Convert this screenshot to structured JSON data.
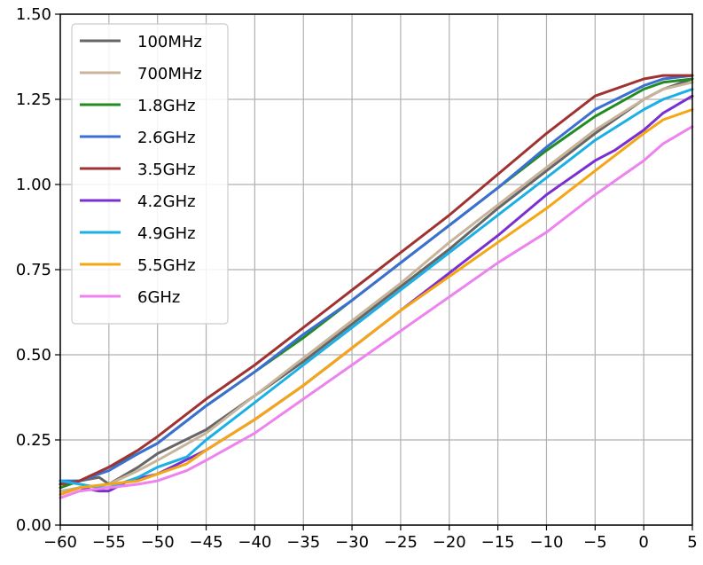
{
  "chart_data": {
    "type": "line",
    "title": "",
    "xlabel": "",
    "ylabel": "",
    "xlim": [
      -60,
      5
    ],
    "ylim": [
      0,
      1.5
    ],
    "xticks": [
      -60,
      -55,
      -50,
      -45,
      -40,
      -35,
      -30,
      -25,
      -20,
      -15,
      -10,
      -5,
      0,
      5
    ],
    "yticks": [
      "0.00",
      "0.25",
      "0.50",
      "0.75",
      "1.00",
      "1.25",
      "1.50"
    ],
    "grid": true,
    "legend_position": "top-left",
    "series": [
      {
        "name": "100MHz",
        "color": "#666666",
        "x": [
          -60,
          -58,
          -56,
          -55,
          -52,
          -50,
          -45,
          -40,
          -35,
          -30,
          -25,
          -20,
          -15,
          -10,
          -5,
          0,
          2,
          5
        ],
        "y": [
          0.12,
          0.13,
          0.14,
          0.12,
          0.17,
          0.21,
          0.28,
          0.38,
          0.48,
          0.59,
          0.7,
          0.81,
          0.93,
          1.04,
          1.15,
          1.25,
          1.28,
          1.31
        ]
      },
      {
        "name": "700MHz",
        "color": "#c8b49b",
        "x": [
          -60,
          -58,
          -55,
          -52,
          -50,
          -45,
          -40,
          -35,
          -30,
          -25,
          -20,
          -15,
          -10,
          -5,
          0,
          2,
          5
        ],
        "y": [
          0.1,
          0.11,
          0.12,
          0.16,
          0.19,
          0.27,
          0.38,
          0.49,
          0.6,
          0.71,
          0.83,
          0.94,
          1.05,
          1.16,
          1.25,
          1.28,
          1.3
        ]
      },
      {
        "name": "1.8GHz",
        "color": "#228b22",
        "x": [
          -60,
          -58,
          -55,
          -52,
          -50,
          -45,
          -40,
          -35,
          -30,
          -25,
          -20,
          -15,
          -10,
          -5,
          0,
          2,
          5
        ],
        "y": [
          0.11,
          0.13,
          0.17,
          0.21,
          0.24,
          0.35,
          0.45,
          0.55,
          0.66,
          0.77,
          0.88,
          0.99,
          1.1,
          1.2,
          1.28,
          1.3,
          1.31
        ]
      },
      {
        "name": "2.6GHz",
        "color": "#3b6fd4",
        "x": [
          -60,
          -58,
          -55,
          -52,
          -50,
          -45,
          -40,
          -35,
          -30,
          -25,
          -20,
          -15,
          -10,
          -5,
          0,
          2,
          5
        ],
        "y": [
          0.13,
          0.13,
          0.16,
          0.21,
          0.24,
          0.35,
          0.45,
          0.56,
          0.66,
          0.77,
          0.88,
          0.99,
          1.11,
          1.22,
          1.29,
          1.31,
          1.32
        ]
      },
      {
        "name": "3.5GHz",
        "color": "#a03232",
        "x": [
          -60,
          -58,
          -55,
          -52,
          -50,
          -45,
          -40,
          -35,
          -30,
          -25,
          -20,
          -15,
          -10,
          -5,
          0,
          2,
          5
        ],
        "y": [
          0.12,
          0.13,
          0.17,
          0.22,
          0.26,
          0.37,
          0.47,
          0.58,
          0.69,
          0.8,
          0.91,
          1.03,
          1.15,
          1.26,
          1.31,
          1.32,
          1.32
        ]
      },
      {
        "name": "4.2GHz",
        "color": "#7b2fd1",
        "x": [
          -60,
          -58,
          -56,
          -55,
          -53,
          -50,
          -45,
          -40,
          -35,
          -30,
          -25,
          -20,
          -15,
          -10,
          -5,
          -3,
          0,
          2,
          5
        ],
        "y": [
          0.09,
          0.11,
          0.1,
          0.1,
          0.13,
          0.15,
          0.22,
          0.31,
          0.41,
          0.52,
          0.63,
          0.74,
          0.85,
          0.97,
          1.07,
          1.1,
          1.16,
          1.21,
          1.26
        ]
      },
      {
        "name": "4.9GHz",
        "color": "#1ab0e6",
        "x": [
          -60,
          -58,
          -56,
          -55,
          -52,
          -50,
          -47,
          -45,
          -40,
          -35,
          -30,
          -25,
          -20,
          -15,
          -10,
          -5,
          0,
          2,
          5
        ],
        "y": [
          0.13,
          0.12,
          0.11,
          0.11,
          0.14,
          0.17,
          0.2,
          0.25,
          0.36,
          0.47,
          0.58,
          0.69,
          0.8,
          0.91,
          1.02,
          1.13,
          1.22,
          1.25,
          1.28
        ]
      },
      {
        "name": "5.5GHz",
        "color": "#f5a614",
        "x": [
          -60,
          -58,
          -55,
          -52,
          -50,
          -47,
          -45,
          -40,
          -35,
          -30,
          -25,
          -20,
          -15,
          -10,
          -5,
          0,
          2,
          5
        ],
        "y": [
          0.09,
          0.11,
          0.12,
          0.13,
          0.15,
          0.18,
          0.22,
          0.31,
          0.41,
          0.52,
          0.63,
          0.73,
          0.83,
          0.93,
          1.04,
          1.15,
          1.19,
          1.22
        ]
      },
      {
        "name": "6GHz",
        "color": "#ee82ee",
        "x": [
          -60,
          -58,
          -55,
          -52,
          -50,
          -47,
          -45,
          -40,
          -35,
          -30,
          -25,
          -20,
          -15,
          -10,
          -5,
          0,
          2,
          5
        ],
        "y": [
          0.08,
          0.1,
          0.11,
          0.12,
          0.13,
          0.16,
          0.19,
          0.27,
          0.37,
          0.47,
          0.57,
          0.67,
          0.77,
          0.86,
          0.97,
          1.07,
          1.12,
          1.17
        ]
      }
    ]
  }
}
